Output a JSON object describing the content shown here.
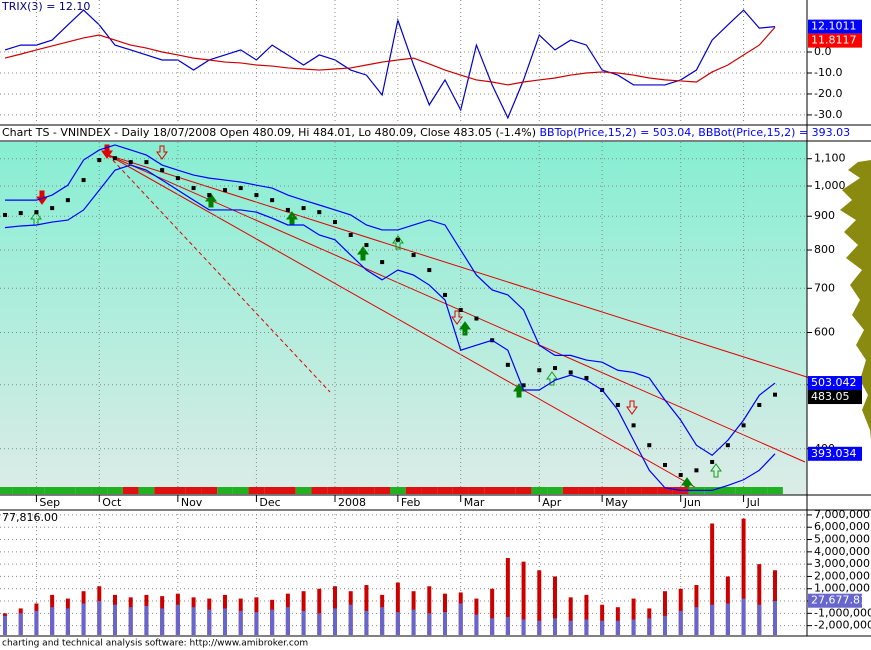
{
  "chart_data": [
    {
      "type": "line",
      "title": "TRIX(3) = 12.10",
      "ylim": [
        -34.8,
        24.8
      ],
      "yticks": [
        {
          "value": 0,
          "label": "0.0"
        },
        {
          "value": -10,
          "label": "-10.0"
        },
        {
          "value": -20,
          "label": "-20.0"
        },
        {
          "value": -30,
          "label": "-30.0"
        }
      ],
      "grid": true,
      "series": [
        {
          "color": "#0000cc",
          "values": [
            1.0,
            3.3,
            3.3,
            5.7,
            12.9,
            20.0,
            12.9,
            3.3,
            1.0,
            -1.4,
            -3.8,
            -3.8,
            -8.6,
            -3.8,
            -1.4,
            1.0,
            -3.8,
            3.3,
            -1.4,
            -6.2,
            -1.4,
            -3.8,
            -8.6,
            -11.0,
            -20.5,
            15.2,
            -6.2,
            -25.2,
            -13.3,
            -27.6,
            3.3,
            -15.7,
            -31.4,
            -13.3,
            8.1,
            1.0,
            5.7,
            3.3,
            -8.6,
            -11.0,
            -15.7,
            -15.7,
            -15.7,
            -13.3,
            -8.6,
            5.7,
            12.9,
            20.0,
            11.4,
            12.1011
          ]
        },
        {
          "color": "#cc0000",
          "values": [
            -2.9,
            -1.0,
            1.0,
            2.9,
            4.8,
            6.7,
            8.1,
            5.7,
            3.3,
            1.9,
            0,
            -1.4,
            -2.9,
            -3.8,
            -4.8,
            -5.2,
            -6.2,
            -6.7,
            -7.6,
            -8.1,
            -8.6,
            -8.1,
            -7.6,
            -6.2,
            -4.8,
            -3.8,
            -2.9,
            -5.7,
            -8.6,
            -11.0,
            -13.3,
            -14.3,
            -15.7,
            -14.3,
            -13.3,
            -12.4,
            -11.0,
            -10.0,
            -9.5,
            -10.0,
            -11.0,
            -12.4,
            -13.3,
            -13.8,
            -14.3,
            -9.5,
            -6.2,
            -1.4,
            3.3,
            11.8117
          ]
        }
      ],
      "boxes": [
        {
          "value": 12.1011,
          "color": "#0000ff"
        },
        {
          "value": 11.8117,
          "color": "#ff0000"
        }
      ]
    },
    {
      "type": "price",
      "title": "Chart TS - VNINDEX - Daily 18/07/2008 Open 480.09, Hi 484.01, Lo 480.09, Close 483.05 (-1.4%)",
      "log_scale": true,
      "ylim": [
        344,
        1166
      ],
      "yticks": [
        {
          "value": 1100,
          "label": "1,100"
        },
        {
          "value": 1000,
          "label": "1,000"
        },
        900,
        800,
        700,
        600,
        500,
        400
      ],
      "grid": true,
      "categories": [
        null,
        null,
        "Sep",
        null,
        null,
        null,
        "Oct",
        null,
        null,
        null,
        null,
        "Nov",
        null,
        null,
        null,
        null,
        "Dec",
        null,
        null,
        null,
        null,
        "2008",
        null,
        null,
        null,
        "Feb",
        null,
        null,
        null,
        "Mar",
        null,
        null,
        null,
        null,
        "Apr",
        null,
        null,
        null,
        "May",
        null,
        null,
        null,
        null,
        "Jun",
        null,
        null,
        null,
        "Jul",
        null,
        null
      ],
      "series": [
        {
          "color": "#000000",
          "style": "tick",
          "values": [
            904,
            910,
            913,
            926,
            952,
            1021,
            1095,
            1102,
            1087,
            1087,
            1057,
            1028,
            993,
            969,
            986,
            993,
            969,
            952,
            920,
            926,
            913,
            882,
            843,
            814,
            767,
            829,
            786,
            746,
            684,
            649,
            630,
            584,
            536,
            499,
            526,
            530,
            522,
            512,
            491,
            466,
            434,
            405,
            378,
            365,
            371,
            382,
            405,
            434,
            466,
            483.05
          ]
        },
        {
          "name": "BBTop(Price,15,2) = 503.04,",
          "color": "#0000ff",
          "style": "line",
          "values": [
            952,
            952,
            952,
            969,
            1003,
            1095,
            1134,
            1154,
            1134,
            1114,
            1076,
            1057,
            1039,
            1028,
            1021,
            1014,
            1003,
            993,
            969,
            952,
            936,
            920,
            904,
            873,
            858,
            858,
            873,
            888,
            873,
            800,
            733,
            696,
            684,
            649,
            574,
            554,
            554,
            545,
            541,
            526,
            522,
            512,
            474,
            442,
            405,
            391,
            412,
            442,
            482,
            503.04
          ]
        },
        {
          "name": "BBBot(Price,15,2) = 393.03",
          "color": "#0000ff",
          "style": "line",
          "values": [
            865,
            870,
            873,
            882,
            888,
            920,
            986,
            1057,
            1076,
            1057,
            1021,
            986,
            952,
            920,
            920,
            920,
            913,
            894,
            873,
            873,
            843,
            829,
            786,
            746,
            721,
            746,
            733,
            708,
            672,
            564,
            574,
            584,
            564,
            491,
            491,
            508,
            517,
            508,
            491,
            458,
            412,
            371,
            349,
            346,
            346,
            346,
            352,
            359,
            371,
            393.03
          ]
        }
      ],
      "boxes": [
        {
          "value": 503.042,
          "color": "#0000ff"
        },
        {
          "value": 483.05,
          "color": "#000000"
        },
        {
          "value": 393.034,
          "color": "#0000ff"
        }
      ]
    },
    {
      "type": "bar",
      "title": "77,816.00",
      "ylim": [
        -2760000,
        7400000
      ],
      "yticks": [
        {
          "value": 7000000,
          "label": "7,000,000"
        },
        {
          "value": 6000000,
          "label": "6,000,000"
        },
        {
          "value": 5000000,
          "label": "5,000,000"
        },
        {
          "value": 4000000,
          "label": "4,000,000"
        },
        {
          "value": 3000000,
          "label": "3,000,000"
        },
        {
          "value": 2000000,
          "label": "2,000,000"
        },
        {
          "value": 1000000,
          "label": "1,000,000"
        },
        0,
        {
          "value": -1000000,
          "label": "-1,000,000"
        },
        {
          "value": -2000000,
          "label": "-2,000,000"
        }
      ],
      "grid": true,
      "series": [
        {
          "color": "#cc0000",
          "values": [
            -1000000,
            -600000,
            -200000,
            500000,
            200000,
            800000,
            1200000,
            500000,
            300000,
            500000,
            400000,
            600000,
            300000,
            200000,
            500000,
            200000,
            300000,
            100000,
            600000,
            800000,
            1000000,
            1200000,
            800000,
            1300000,
            500000,
            1500000,
            800000,
            1200000,
            600000,
            700000,
            200000,
            1000000,
            3500000,
            3200000,
            2500000,
            2000000,
            300000,
            500000,
            -300000,
            -500000,
            200000,
            -600000,
            800000,
            1000000,
            1300000,
            6300000,
            2000000,
            6700000,
            3000000,
            2500000
          ]
        },
        {
          "color": "#6666cc",
          "values": [
            -1200000,
            -1000000,
            -800000,
            -500000,
            -600000,
            -200000,
            0,
            -300000,
            -500000,
            -400000,
            -600000,
            -300000,
            -500000,
            -700000,
            -600000,
            -800000,
            -900000,
            -700000,
            -500000,
            -800000,
            -1000000,
            -600000,
            -300000,
            -800000,
            -500000,
            -900000,
            -700000,
            -1000000,
            -900000,
            -200000,
            -1100000,
            -1400000,
            -1300000,
            -1500000,
            -1600000,
            -1400000,
            -1600000,
            -1500000,
            -1600000,
            -1600000,
            -1500000,
            -1400000,
            -1200000,
            -800000,
            -500000,
            -300000,
            -200000,
            200000,
            -300000,
            0
          ]
        }
      ],
      "boxes": [
        {
          "value": 27677.81,
          "label": "27,677.81",
          "color": "#6666cc"
        }
      ]
    },
    {
      "type": "footer",
      "title": "charting and technical analysis software: http://www.amibroker.com"
    }
  ]
}
